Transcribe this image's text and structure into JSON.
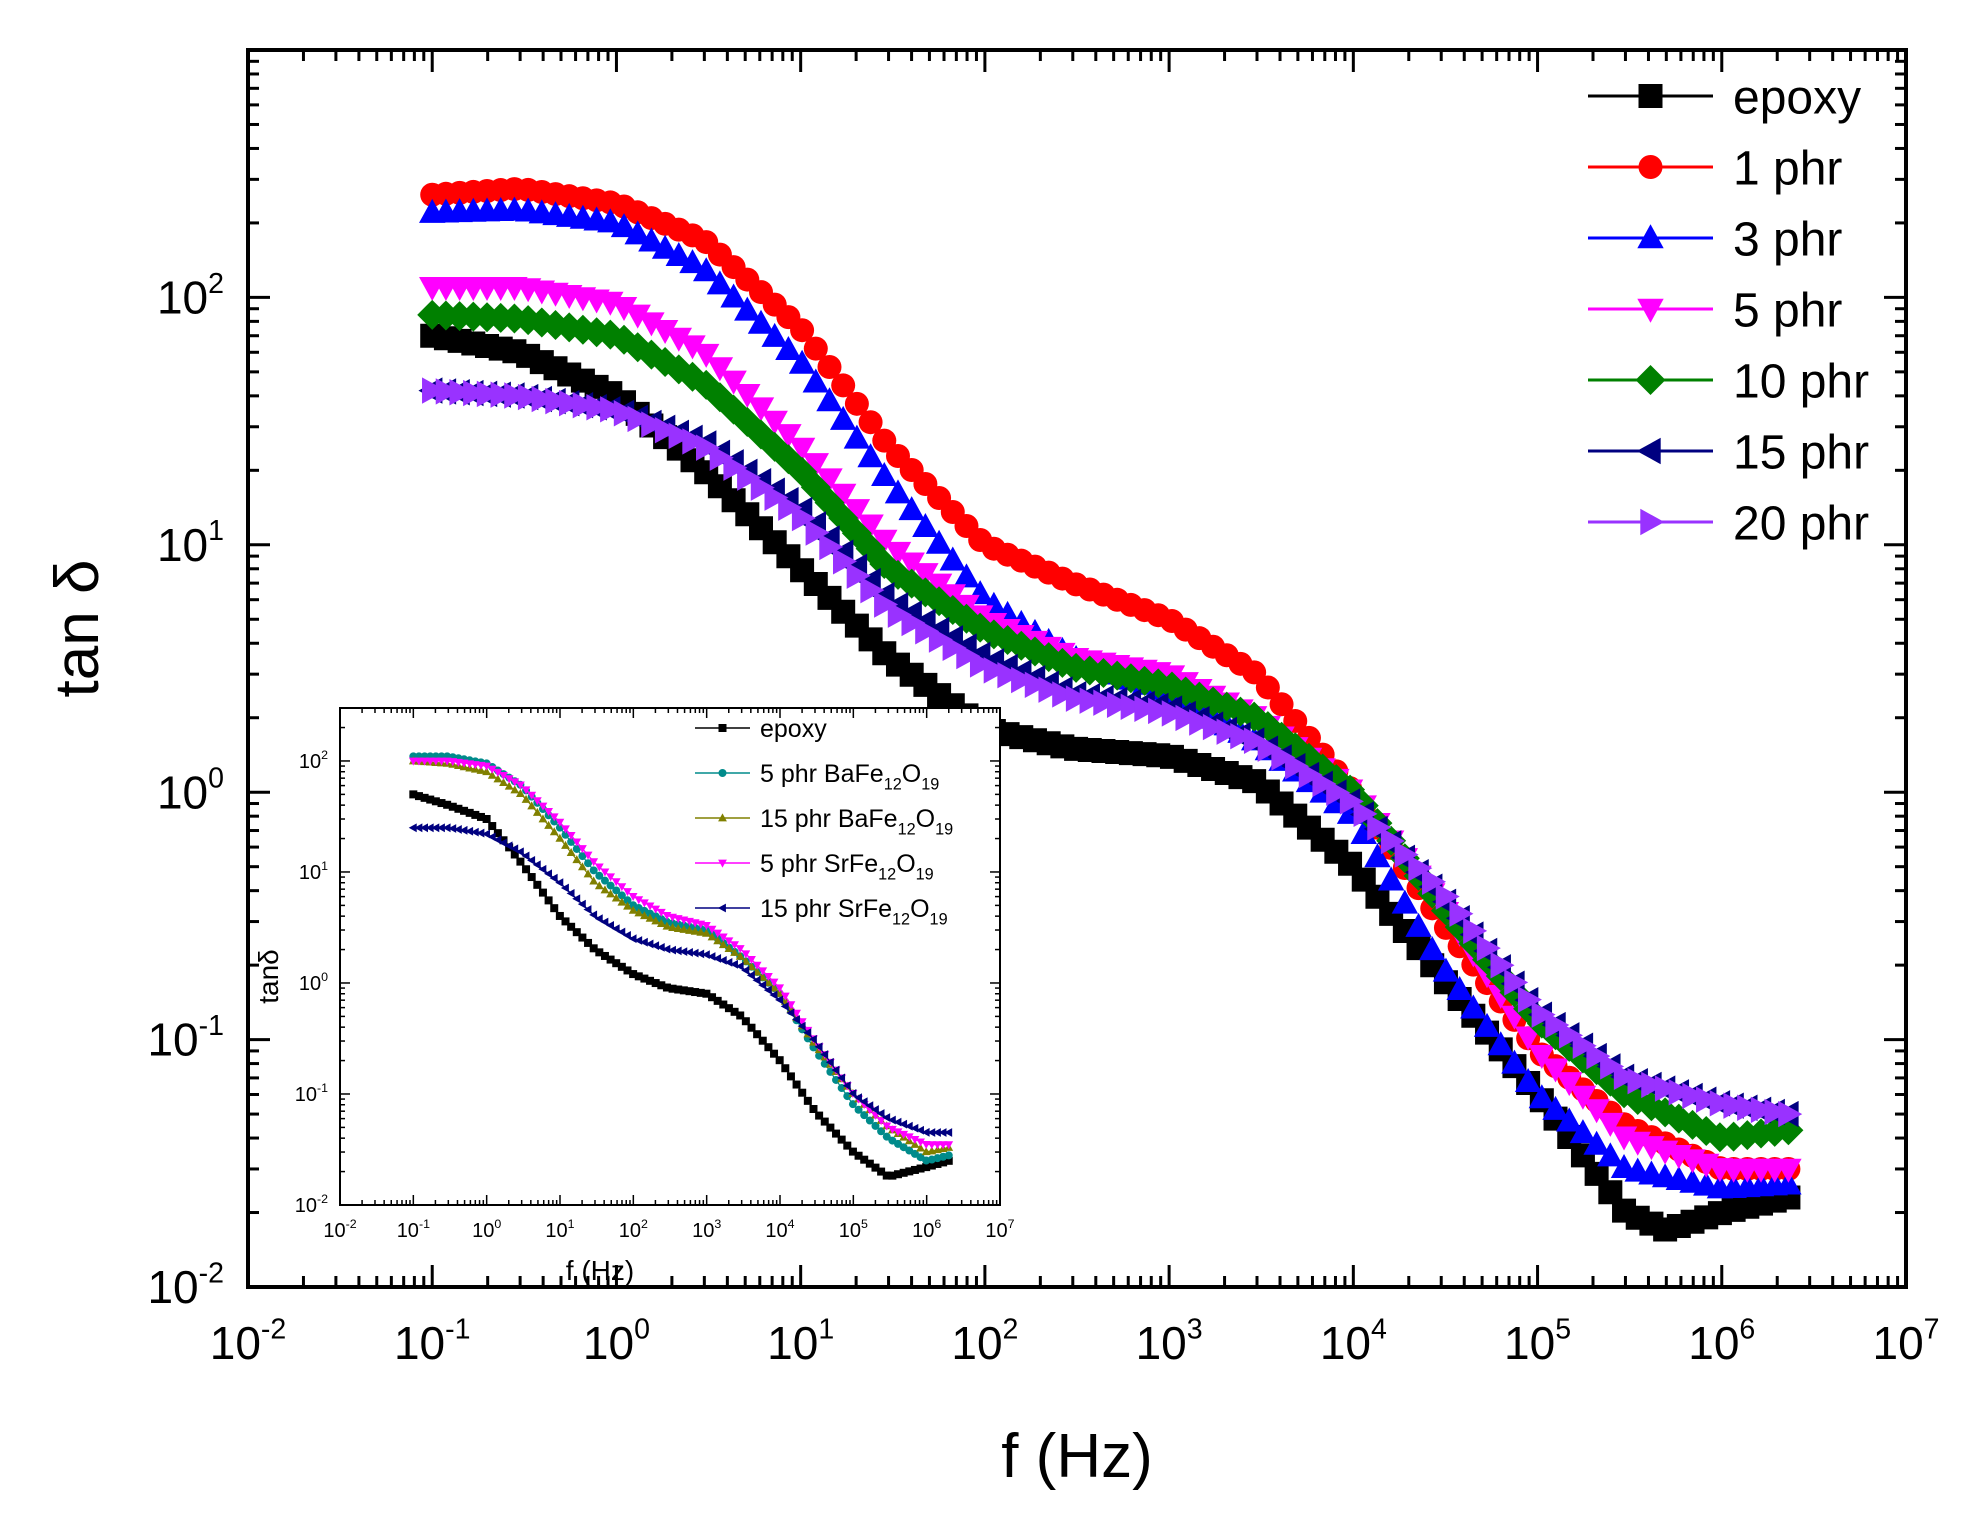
{
  "chart_data": [
    {
      "id": "main",
      "type": "scatter",
      "x_scale": "log",
      "y_scale": "log",
      "xlim": [
        0.01,
        10000000
      ],
      "ylim": [
        0.01,
        1000
      ],
      "xlabel": "f (Hz)",
      "ylabel": "tan δ",
      "x_ticks": [
        {
          "value": 0.01,
          "base": "10",
          "exp": "-2"
        },
        {
          "value": 0.1,
          "base": "10",
          "exp": "-1"
        },
        {
          "value": 1,
          "base": "10",
          "exp": "0"
        },
        {
          "value": 10,
          "base": "10",
          "exp": "1"
        },
        {
          "value": 100,
          "base": "10",
          "exp": "2"
        },
        {
          "value": 1000,
          "base": "10",
          "exp": "3"
        },
        {
          "value": 10000,
          "base": "10",
          "exp": "4"
        },
        {
          "value": 100000,
          "base": "10",
          "exp": "5"
        },
        {
          "value": 1000000,
          "base": "10",
          "exp": "6"
        },
        {
          "value": 10000000,
          "base": "10",
          "exp": "7"
        }
      ],
      "y_ticks": [
        {
          "value": 0.01,
          "base": "10",
          "exp": "-2"
        },
        {
          "value": 0.1,
          "base": "10",
          "exp": "-1"
        },
        {
          "value": 1,
          "base": "10",
          "exp": "0"
        },
        {
          "value": 10,
          "base": "10",
          "exp": "1"
        },
        {
          "value": 100,
          "base": "10",
          "exp": "2"
        }
      ],
      "legend_position": "top-right",
      "series": [
        {
          "name": "epoxy",
          "color": "#000000",
          "marker": "square",
          "points": [
            [
              0.1,
              70
            ],
            [
              0.3,
              60
            ],
            [
              1,
              40
            ],
            [
              3,
              20
            ],
            [
              10,
              8
            ],
            [
              30,
              3.5
            ],
            [
              100,
              1.8
            ],
            [
              300,
              1.5
            ],
            [
              1000,
              1.4
            ],
            [
              3000,
              1.1
            ],
            [
              10000,
              0.5
            ],
            [
              30000,
              0.18
            ],
            [
              100000,
              0.06
            ],
            [
              300000,
              0.02
            ],
            [
              500000,
              0.017
            ],
            [
              1000000,
              0.02
            ],
            [
              2300000,
              0.023
            ]
          ]
        },
        {
          "name": "1 phr",
          "color": "#ff0000",
          "marker": "circle",
          "points": [
            [
              0.1,
              260
            ],
            [
              0.3,
              275
            ],
            [
              1,
              240
            ],
            [
              3,
              170
            ],
            [
              10,
              75
            ],
            [
              30,
              25
            ],
            [
              100,
              10
            ],
            [
              300,
              7
            ],
            [
              1000,
              5
            ],
            [
              3000,
              3
            ],
            [
              10000,
              1
            ],
            [
              30000,
              0.3
            ],
            [
              100000,
              0.09
            ],
            [
              300000,
              0.045
            ],
            [
              1000000,
              0.03
            ],
            [
              2300000,
              0.03
            ]
          ]
        },
        {
          "name": "3 phr",
          "color": "#0000ff",
          "marker": "triangle-up",
          "points": [
            [
              0.1,
              220
            ],
            [
              0.3,
              225
            ],
            [
              1,
              200
            ],
            [
              3,
              130
            ],
            [
              10,
              55
            ],
            [
              30,
              18
            ],
            [
              100,
              6
            ],
            [
              300,
              3.5
            ],
            [
              1000,
              2.5
            ],
            [
              3000,
              1.6
            ],
            [
              10000,
              0.8
            ],
            [
              30000,
              0.2
            ],
            [
              100000,
              0.06
            ],
            [
              300000,
              0.03
            ],
            [
              1000000,
              0.025
            ],
            [
              2300000,
              0.026
            ]
          ]
        },
        {
          "name": "5 phr",
          "color": "#ff00ff",
          "marker": "triangle-down",
          "points": [
            [
              0.1,
              110
            ],
            [
              0.3,
              110
            ],
            [
              1,
              95
            ],
            [
              3,
              60
            ],
            [
              10,
              25
            ],
            [
              30,
              10
            ],
            [
              100,
              5
            ],
            [
              300,
              3.5
            ],
            [
              1000,
              3
            ],
            [
              3000,
              2
            ],
            [
              10000,
              1
            ],
            [
              30000,
              0.35
            ],
            [
              100000,
              0.09
            ],
            [
              300000,
              0.04
            ],
            [
              1000000,
              0.03
            ],
            [
              2300000,
              0.03
            ]
          ]
        },
        {
          "name": "10 phr",
          "color": "#008000",
          "marker": "diamond",
          "points": [
            [
              0.1,
              85
            ],
            [
              0.3,
              82
            ],
            [
              1,
              70
            ],
            [
              3,
              45
            ],
            [
              10,
              20
            ],
            [
              30,
              8
            ],
            [
              100,
              4.5
            ],
            [
              300,
              3.2
            ],
            [
              1000,
              2.7
            ],
            [
              3000,
              2
            ],
            [
              10000,
              1
            ],
            [
              30000,
              0.35
            ],
            [
              100000,
              0.12
            ],
            [
              300000,
              0.06
            ],
            [
              1000000,
              0.04
            ],
            [
              2300000,
              0.043
            ]
          ]
        },
        {
          "name": "15 phr",
          "color": "#000080",
          "marker": "triangle-left",
          "points": [
            [
              0.1,
              42
            ],
            [
              0.3,
              40
            ],
            [
              1,
              35
            ],
            [
              3,
              26
            ],
            [
              10,
              14
            ],
            [
              30,
              6
            ],
            [
              100,
              3.5
            ],
            [
              300,
              2.5
            ],
            [
              1000,
              2.2
            ],
            [
              3000,
              1.6
            ],
            [
              10000,
              0.9
            ],
            [
              30000,
              0.38
            ],
            [
              100000,
              0.13
            ],
            [
              300000,
              0.07
            ],
            [
              1000000,
              0.055
            ],
            [
              2300000,
              0.05
            ]
          ]
        },
        {
          "name": "20 phr",
          "color": "#9932ff",
          "marker": "triangle-right",
          "points": [
            [
              0.1,
              42
            ],
            [
              0.3,
              40
            ],
            [
              1,
              35
            ],
            [
              3,
              25
            ],
            [
              10,
              13
            ],
            [
              30,
              5.5
            ],
            [
              100,
              3.2
            ],
            [
              300,
              2.4
            ],
            [
              1000,
              2.1
            ],
            [
              3000,
              1.6
            ],
            [
              10000,
              0.9
            ],
            [
              30000,
              0.4
            ],
            [
              100000,
              0.13
            ],
            [
              300000,
              0.07
            ],
            [
              1000000,
              0.055
            ],
            [
              2300000,
              0.05
            ]
          ]
        }
      ]
    },
    {
      "id": "inset",
      "type": "scatter",
      "x_scale": "log",
      "y_scale": "log",
      "xlim": [
        0.01,
        10000000
      ],
      "ylim": [
        0.01,
        300
      ],
      "xlabel": "f (Hz)",
      "ylabel": "tanδ",
      "x_ticks": [
        {
          "value": 0.01,
          "base": "10",
          "exp": "-2"
        },
        {
          "value": 0.1,
          "base": "10",
          "exp": "-1"
        },
        {
          "value": 1,
          "base": "10",
          "exp": "0"
        },
        {
          "value": 10,
          "base": "10",
          "exp": "1"
        },
        {
          "value": 100,
          "base": "10",
          "exp": "2"
        },
        {
          "value": 1000,
          "base": "10",
          "exp": "3"
        },
        {
          "value": 10000,
          "base": "10",
          "exp": "4"
        },
        {
          "value": 100000,
          "base": "10",
          "exp": "5"
        },
        {
          "value": 1000000,
          "base": "10",
          "exp": "6"
        },
        {
          "value": 10000000,
          "base": "10",
          "exp": "7"
        }
      ],
      "y_ticks": [
        {
          "value": 0.01,
          "base": "10",
          "exp": "-2"
        },
        {
          "value": 0.1,
          "base": "10",
          "exp": "-1"
        },
        {
          "value": 1,
          "base": "10",
          "exp": "0"
        },
        {
          "value": 10,
          "base": "10",
          "exp": "1"
        },
        {
          "value": 100,
          "base": "10",
          "exp": "2"
        }
      ],
      "legend_position": "top-right",
      "series": [
        {
          "name": "epoxy",
          "label_parts": [
            {
              "t": "epoxy",
              "s": "n"
            }
          ],
          "color": "#000000",
          "marker": "square",
          "points": [
            [
              0.1,
              50
            ],
            [
              0.3,
              40
            ],
            [
              1,
              30
            ],
            [
              3,
              12
            ],
            [
              10,
              4
            ],
            [
              30,
              2
            ],
            [
              100,
              1.2
            ],
            [
              300,
              0.9
            ],
            [
              1000,
              0.8
            ],
            [
              3000,
              0.5
            ],
            [
              10000,
              0.2
            ],
            [
              30000,
              0.07
            ],
            [
              100000,
              0.03
            ],
            [
              300000,
              0.018
            ],
            [
              1000000,
              0.022
            ],
            [
              2000000,
              0.025
            ]
          ]
        },
        {
          "name": "5 phr BaFe12O19",
          "label_parts": [
            {
              "t": "5 phr BaFe",
              "s": "n"
            },
            {
              "t": "12",
              "s": "sub"
            },
            {
              "t": "O",
              "s": "n"
            },
            {
              "t": "19",
              "s": "sub"
            }
          ],
          "color": "#008b8b",
          "marker": "circle",
          "points": [
            [
              0.1,
              110
            ],
            [
              0.3,
              110
            ],
            [
              1,
              95
            ],
            [
              3,
              60
            ],
            [
              10,
              25
            ],
            [
              30,
              10
            ],
            [
              100,
              5
            ],
            [
              300,
              3.5
            ],
            [
              1000,
              3
            ],
            [
              3000,
              1.7
            ],
            [
              10000,
              0.8
            ],
            [
              30000,
              0.25
            ],
            [
              100000,
              0.08
            ],
            [
              300000,
              0.04
            ],
            [
              1000000,
              0.025
            ],
            [
              2000000,
              0.028
            ]
          ]
        },
        {
          "name": "15 phr BaFe12O19",
          "label_parts": [
            {
              "t": "15 phr BaFe",
              "s": "n"
            },
            {
              "t": "12",
              "s": "sub"
            },
            {
              "t": "O",
              "s": "n"
            },
            {
              "t": "19",
              "s": "sub"
            }
          ],
          "color": "#808000",
          "marker": "triangle-up",
          "points": [
            [
              0.1,
              100
            ],
            [
              0.3,
              95
            ],
            [
              1,
              80
            ],
            [
              3,
              50
            ],
            [
              10,
              20
            ],
            [
              30,
              8
            ],
            [
              100,
              4.5
            ],
            [
              300,
              3.2
            ],
            [
              1000,
              2.8
            ],
            [
              3000,
              1.7
            ],
            [
              10000,
              0.8
            ],
            [
              30000,
              0.28
            ],
            [
              100000,
              0.1
            ],
            [
              300000,
              0.05
            ],
            [
              1000000,
              0.03
            ],
            [
              2000000,
              0.033
            ]
          ]
        },
        {
          "name": "5 phr SrFe12O19",
          "label_parts": [
            {
              "t": "5 phr SrFe",
              "s": "n"
            },
            {
              "t": "12",
              "s": "sub"
            },
            {
              "t": "O",
              "s": "n"
            },
            {
              "t": "19",
              "s": "sub"
            }
          ],
          "color": "#ff00ff",
          "marker": "triangle-down",
          "points": [
            [
              0.1,
              100
            ],
            [
              0.3,
              100
            ],
            [
              1,
              90
            ],
            [
              3,
              60
            ],
            [
              10,
              28
            ],
            [
              30,
              12
            ],
            [
              100,
              6
            ],
            [
              300,
              4
            ],
            [
              1000,
              3.3
            ],
            [
              3000,
              2
            ],
            [
              10000,
              0.9
            ],
            [
              30000,
              0.3
            ],
            [
              100000,
              0.1
            ],
            [
              300000,
              0.05
            ],
            [
              1000000,
              0.035
            ],
            [
              2000000,
              0.035
            ]
          ]
        },
        {
          "name": "15 phr SrFe12O19",
          "label_parts": [
            {
              "t": "15 phr SrFe",
              "s": "n"
            },
            {
              "t": "12",
              "s": "sub"
            },
            {
              "t": "O",
              "s": "n"
            },
            {
              "t": "19",
              "s": "sub"
            }
          ],
          "color": "#000080",
          "marker": "triangle-left",
          "points": [
            [
              0.1,
              25
            ],
            [
              0.3,
              25
            ],
            [
              1,
              22
            ],
            [
              3,
              15
            ],
            [
              10,
              8
            ],
            [
              30,
              4
            ],
            [
              100,
              2.5
            ],
            [
              300,
              2
            ],
            [
              1000,
              1.8
            ],
            [
              3000,
              1.4
            ],
            [
              10000,
              0.7
            ],
            [
              30000,
              0.3
            ],
            [
              100000,
              0.1
            ],
            [
              300000,
              0.06
            ],
            [
              1000000,
              0.045
            ],
            [
              2000000,
              0.045
            ]
          ]
        }
      ]
    }
  ]
}
